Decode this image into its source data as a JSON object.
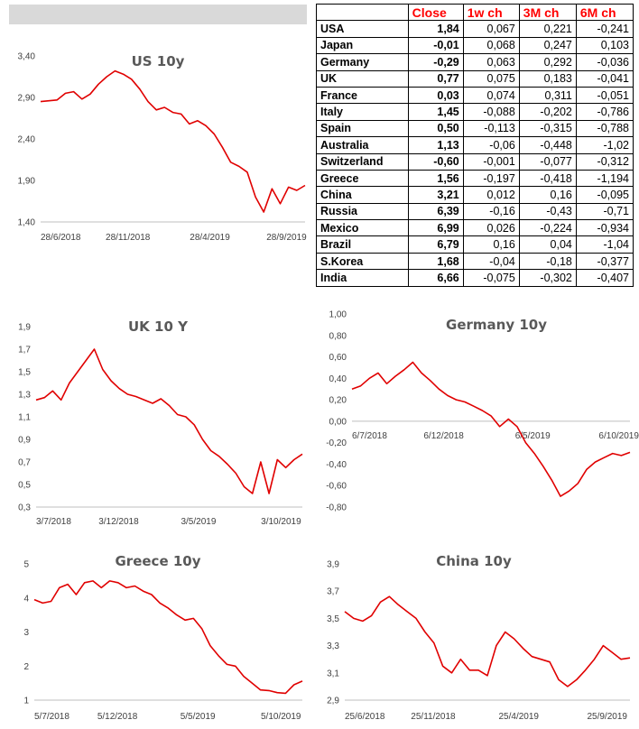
{
  "table": {
    "headers": [
      "",
      "Close",
      "1w ch",
      "3M ch",
      "6M ch"
    ],
    "rows": [
      [
        "USA",
        "1,84",
        "0,067",
        "0,221",
        "-0,241"
      ],
      [
        "Japan",
        "-0,01",
        "0,068",
        "0,247",
        "0,103"
      ],
      [
        "Germany",
        "-0,29",
        "0,063",
        "0,292",
        "-0,036"
      ],
      [
        "UK",
        "0,77",
        "0,075",
        "0,183",
        "-0,041"
      ],
      [
        "France",
        "0,03",
        "0,074",
        "0,311",
        "-0,051"
      ],
      [
        "Italy",
        "1,45",
        "-0,088",
        "-0,202",
        "-0,786"
      ],
      [
        "Spain",
        "0,50",
        "-0,113",
        "-0,315",
        "-0,788"
      ],
      [
        "Australia",
        "1,13",
        "-0,06",
        "-0,448",
        "-1,02"
      ],
      [
        "Switzerland",
        "-0,60",
        "-0,001",
        "-0,077",
        "-0,312"
      ],
      [
        "Greece",
        "1,56",
        "-0,197",
        "-0,418",
        "-1,194"
      ],
      [
        "China",
        "3,21",
        "0,012",
        "0,16",
        "-0,095"
      ],
      [
        "Russia",
        "6,39",
        "-0,16",
        "-0,43",
        "-0,71"
      ],
      [
        "Mexico",
        "6,99",
        "0,026",
        "-0,224",
        "-0,934"
      ],
      [
        "Brazil",
        "6,79",
        "0,16",
        "0,04",
        "-1,04"
      ],
      [
        "S.Korea",
        "1,68",
        "-0,04",
        "-0,18",
        "-0,377"
      ],
      [
        "India",
        "6,66",
        "-0,075",
        "-0,302",
        "-0,407"
      ]
    ]
  },
  "colors": {
    "line": "#e00000",
    "header_text": "#ff0000",
    "band": "#d9d9d9"
  },
  "chart_data": [
    {
      "id": "us",
      "type": "line",
      "title": "US 10y",
      "ylim": [
        1.4,
        3.4
      ],
      "yticks": [
        "3,40",
        "2,90",
        "2,40",
        "1,90",
        "1,40"
      ],
      "xticks": [
        "28/6/2018",
        "28/11/2018",
        "28/4/2019",
        "28/9/2019"
      ],
      "xaxis_at": 1.4,
      "x_range": [
        0,
        16
      ],
      "points": [
        [
          0,
          2.85
        ],
        [
          0.5,
          2.86
        ],
        [
          1,
          2.87
        ],
        [
          1.5,
          2.95
        ],
        [
          2,
          2.97
        ],
        [
          2.5,
          2.88
        ],
        [
          3,
          2.94
        ],
        [
          3.5,
          3.06
        ],
        [
          4,
          3.15
        ],
        [
          4.5,
          3.22
        ],
        [
          5,
          3.18
        ],
        [
          5.5,
          3.12
        ],
        [
          6,
          3.0
        ],
        [
          6.5,
          2.85
        ],
        [
          7,
          2.75
        ],
        [
          7.5,
          2.78
        ],
        [
          8,
          2.72
        ],
        [
          8.5,
          2.7
        ],
        [
          9,
          2.58
        ],
        [
          9.5,
          2.62
        ],
        [
          10,
          2.56
        ],
        [
          10.5,
          2.46
        ],
        [
          11,
          2.3
        ],
        [
          11.5,
          2.12
        ],
        [
          12,
          2.07
        ],
        [
          12.5,
          2.0
        ],
        [
          13,
          1.7
        ],
        [
          13.5,
          1.52
        ],
        [
          14,
          1.8
        ],
        [
          14.5,
          1.62
        ],
        [
          15,
          1.82
        ],
        [
          15.5,
          1.78
        ],
        [
          16,
          1.84
        ]
      ]
    },
    {
      "id": "uk",
      "type": "line",
      "title": "UK 10 Y",
      "ylim": [
        0.3,
        1.9
      ],
      "yticks": [
        "1,9",
        "1,7",
        "1,5",
        "1,3",
        "1,1",
        "0,9",
        "0,7",
        "0,5",
        "0,3"
      ],
      "xticks": [
        "3/7/2018",
        "3/12/2018",
        "3/5/2019",
        "3/10/2019"
      ],
      "xaxis_at": 0.3,
      "x_range": [
        0,
        16
      ],
      "points": [
        [
          0,
          1.25
        ],
        [
          0.5,
          1.27
        ],
        [
          1,
          1.33
        ],
        [
          1.5,
          1.25
        ],
        [
          2,
          1.4
        ],
        [
          2.5,
          1.5
        ],
        [
          3,
          1.6
        ],
        [
          3.5,
          1.7
        ],
        [
          4,
          1.52
        ],
        [
          4.5,
          1.42
        ],
        [
          5,
          1.35
        ],
        [
          5.5,
          1.3
        ],
        [
          6,
          1.28
        ],
        [
          6.5,
          1.25
        ],
        [
          7,
          1.22
        ],
        [
          7.5,
          1.26
        ],
        [
          8,
          1.2
        ],
        [
          8.5,
          1.12
        ],
        [
          9,
          1.1
        ],
        [
          9.5,
          1.03
        ],
        [
          10,
          0.9
        ],
        [
          10.5,
          0.8
        ],
        [
          11,
          0.75
        ],
        [
          11.5,
          0.68
        ],
        [
          12,
          0.6
        ],
        [
          12.5,
          0.48
        ],
        [
          13,
          0.42
        ],
        [
          13.5,
          0.7
        ],
        [
          14,
          0.42
        ],
        [
          14.5,
          0.72
        ],
        [
          15,
          0.65
        ],
        [
          15.5,
          0.72
        ],
        [
          16,
          0.77
        ]
      ]
    },
    {
      "id": "de",
      "type": "line",
      "title": "Germany 10y",
      "ylim": [
        -0.8,
        1.0
      ],
      "yticks": [
        "1,00",
        "0,80",
        "0,60",
        "0,40",
        "0,20",
        "0,00",
        "-0,20",
        "-0,40",
        "-0,60",
        "-0,80"
      ],
      "xticks": [
        "6/7/2018",
        "6/12/2018",
        "6/5/2019",
        "6/10/2019"
      ],
      "xaxis_at": 0.0,
      "x_range": [
        0,
        16
      ],
      "points": [
        [
          0,
          0.3
        ],
        [
          0.5,
          0.33
        ],
        [
          1,
          0.4
        ],
        [
          1.5,
          0.45
        ],
        [
          2,
          0.35
        ],
        [
          2.5,
          0.42
        ],
        [
          3,
          0.48
        ],
        [
          3.5,
          0.55
        ],
        [
          4,
          0.45
        ],
        [
          4.5,
          0.38
        ],
        [
          5,
          0.3
        ],
        [
          5.5,
          0.24
        ],
        [
          6,
          0.2
        ],
        [
          6.5,
          0.18
        ],
        [
          7,
          0.14
        ],
        [
          7.5,
          0.1
        ],
        [
          8,
          0.05
        ],
        [
          8.5,
          -0.05
        ],
        [
          9,
          0.02
        ],
        [
          9.5,
          -0.05
        ],
        [
          10,
          -0.2
        ],
        [
          10.5,
          -0.3
        ],
        [
          11,
          -0.42
        ],
        [
          11.5,
          -0.55
        ],
        [
          12,
          -0.7
        ],
        [
          12.5,
          -0.65
        ],
        [
          13,
          -0.58
        ],
        [
          13.5,
          -0.45
        ],
        [
          14,
          -0.38
        ],
        [
          14.5,
          -0.34
        ],
        [
          15,
          -0.3
        ],
        [
          15.5,
          -0.32
        ],
        [
          16,
          -0.29
        ]
      ]
    },
    {
      "id": "gr",
      "type": "line",
      "title": "Greece 10y",
      "ylim": [
        1,
        5
      ],
      "yticks": [
        "5",
        "4",
        "3",
        "2",
        "1"
      ],
      "xticks": [
        "5/7/2018",
        "5/12/2018",
        "5/5/2019",
        "5/10/2019"
      ],
      "xaxis_at": 1,
      "x_range": [
        0,
        16
      ],
      "points": [
        [
          0,
          3.95
        ],
        [
          0.5,
          3.85
        ],
        [
          1,
          3.9
        ],
        [
          1.5,
          4.3
        ],
        [
          2,
          4.4
        ],
        [
          2.5,
          4.1
        ],
        [
          3,
          4.45
        ],
        [
          3.5,
          4.5
        ],
        [
          4,
          4.3
        ],
        [
          4.5,
          4.5
        ],
        [
          5,
          4.45
        ],
        [
          5.5,
          4.3
        ],
        [
          6,
          4.35
        ],
        [
          6.5,
          4.2
        ],
        [
          7,
          4.1
        ],
        [
          7.5,
          3.85
        ],
        [
          8,
          3.7
        ],
        [
          8.5,
          3.5
        ],
        [
          9,
          3.35
        ],
        [
          9.5,
          3.4
        ],
        [
          10,
          3.1
        ],
        [
          10.5,
          2.6
        ],
        [
          11,
          2.3
        ],
        [
          11.5,
          2.05
        ],
        [
          12,
          2.0
        ],
        [
          12.5,
          1.7
        ],
        [
          13,
          1.5
        ],
        [
          13.5,
          1.3
        ],
        [
          14,
          1.28
        ],
        [
          14.5,
          1.22
        ],
        [
          15,
          1.2
        ],
        [
          15.5,
          1.45
        ],
        [
          16,
          1.56
        ]
      ]
    },
    {
      "id": "cn",
      "type": "line",
      "title": "China 10y",
      "ylim": [
        2.9,
        3.9
      ],
      "yticks": [
        "3,9",
        "3,7",
        "3,5",
        "3,3",
        "3,1",
        "2,9"
      ],
      "xticks": [
        "25/6/2018",
        "25/11/2018",
        "25/4/2019",
        "25/9/2019"
      ],
      "xaxis_at": 2.9,
      "x_range": [
        0,
        16
      ],
      "points": [
        [
          0,
          3.55
        ],
        [
          0.5,
          3.5
        ],
        [
          1,
          3.48
        ],
        [
          1.5,
          3.52
        ],
        [
          2,
          3.62
        ],
        [
          2.5,
          3.66
        ],
        [
          3,
          3.6
        ],
        [
          3.5,
          3.55
        ],
        [
          4,
          3.5
        ],
        [
          4.5,
          3.4
        ],
        [
          5,
          3.32
        ],
        [
          5.5,
          3.15
        ],
        [
          6,
          3.1
        ],
        [
          6.5,
          3.2
        ],
        [
          7,
          3.12
        ],
        [
          7.5,
          3.12
        ],
        [
          8,
          3.08
        ],
        [
          8.5,
          3.3
        ],
        [
          9,
          3.4
        ],
        [
          9.5,
          3.35
        ],
        [
          10,
          3.28
        ],
        [
          10.5,
          3.22
        ],
        [
          11,
          3.2
        ],
        [
          11.5,
          3.18
        ],
        [
          12,
          3.05
        ],
        [
          12.5,
          3.0
        ],
        [
          13,
          3.05
        ],
        [
          13.5,
          3.12
        ],
        [
          14,
          3.2
        ],
        [
          14.5,
          3.3
        ],
        [
          15,
          3.25
        ],
        [
          15.5,
          3.2
        ],
        [
          16,
          3.21
        ]
      ]
    }
  ]
}
